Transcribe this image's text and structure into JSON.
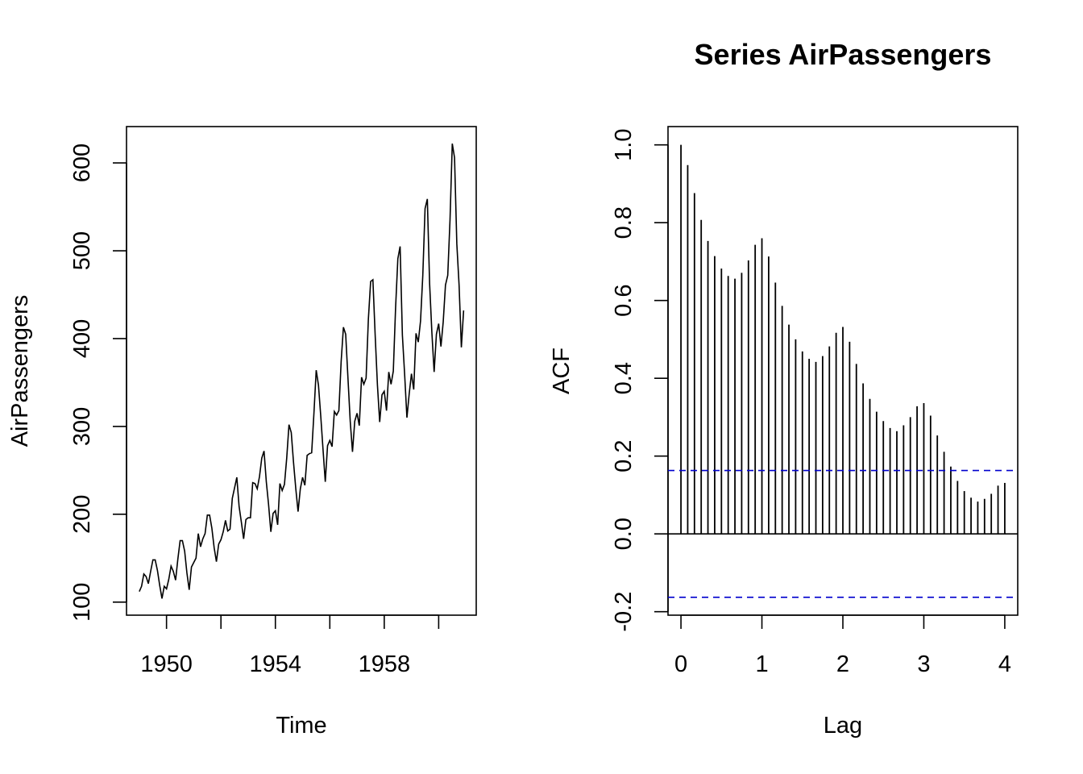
{
  "chart_data": [
    {
      "type": "line",
      "title": "",
      "xlabel": "Time",
      "ylabel": "AirPassengers",
      "x_tick_labels": [
        "1950",
        "1954",
        "1958"
      ],
      "x_ticks": [
        1950,
        1952,
        1954,
        1956,
        1958,
        1960
      ],
      "y_tick_labels": [
        "100",
        "200",
        "300",
        "400",
        "500",
        "600"
      ],
      "y_ticks": [
        100,
        200,
        300,
        400,
        500,
        600
      ],
      "xlim": [
        1948.53,
        1961.38
      ],
      "ylim": [
        85.1,
        641.4
      ],
      "x_start": 1949,
      "x_step": 0.0833333,
      "series": [
        {
          "color": "#000000",
          "values": [
            112,
            118,
            132,
            129,
            121,
            135,
            148,
            148,
            136,
            119,
            104,
            118,
            115,
            126,
            141,
            135,
            125,
            149,
            170,
            170,
            158,
            133,
            114,
            140,
            145,
            150,
            178,
            163,
            172,
            178,
            199,
            199,
            184,
            162,
            146,
            166,
            171,
            180,
            193,
            181,
            183,
            218,
            230,
            242,
            209,
            191,
            172,
            194,
            196,
            196,
            236,
            235,
            229,
            243,
            264,
            272,
            237,
            211,
            180,
            201,
            204,
            188,
            235,
            227,
            234,
            264,
            302,
            293,
            259,
            229,
            203,
            229,
            242,
            233,
            267,
            269,
            270,
            315,
            364,
            347,
            312,
            274,
            237,
            278,
            284,
            277,
            317,
            313,
            318,
            374,
            413,
            405,
            355,
            306,
            271,
            306,
            315,
            301,
            356,
            348,
            355,
            422,
            465,
            467,
            404,
            347,
            305,
            336,
            340,
            318,
            362,
            348,
            363,
            435,
            491,
            505,
            404,
            359,
            310,
            337,
            360,
            342,
            406,
            396,
            420,
            472,
            548,
            559,
            463,
            407,
            362,
            405,
            417,
            391,
            419,
            461,
            472,
            535,
            622,
            606,
            508,
            461,
            390,
            432
          ]
        }
      ],
      "grid": false,
      "legend": "none"
    },
    {
      "type": "bar",
      "title": "Series  AirPassengers",
      "xlabel": "Lag",
      "ylabel": "ACF",
      "x_tick_labels": [
        "0",
        "1",
        "2",
        "3",
        "4"
      ],
      "x_ticks": [
        0,
        1,
        2,
        3,
        4
      ],
      "y_tick_labels": [
        "-0.2",
        "0.0",
        "0.2",
        "0.4",
        "0.6",
        "0.8",
        "1.0"
      ],
      "y_ticks": [
        -0.2,
        0.0,
        0.2,
        0.4,
        0.6,
        0.8,
        1.0
      ],
      "xlim": [
        -0.16,
        4.16
      ],
      "ylim": [
        -0.209,
        1.047
      ],
      "lag_step": 0.0833333,
      "values": [
        1.0,
        0.948,
        0.876,
        0.807,
        0.753,
        0.714,
        0.682,
        0.663,
        0.656,
        0.671,
        0.703,
        0.743,
        0.76,
        0.713,
        0.646,
        0.586,
        0.538,
        0.5,
        0.469,
        0.45,
        0.442,
        0.457,
        0.482,
        0.517,
        0.532,
        0.494,
        0.437,
        0.387,
        0.347,
        0.314,
        0.29,
        0.272,
        0.264,
        0.279,
        0.3,
        0.328,
        0.336,
        0.304,
        0.253,
        0.211,
        0.173,
        0.136,
        0.11,
        0.093,
        0.083,
        0.09,
        0.103,
        0.124,
        0.131
      ],
      "confidence_band": 0.163,
      "zero_line": true,
      "bar_color": "#000000",
      "band_color": "#0000cd",
      "grid": false,
      "legend": "none"
    }
  ]
}
